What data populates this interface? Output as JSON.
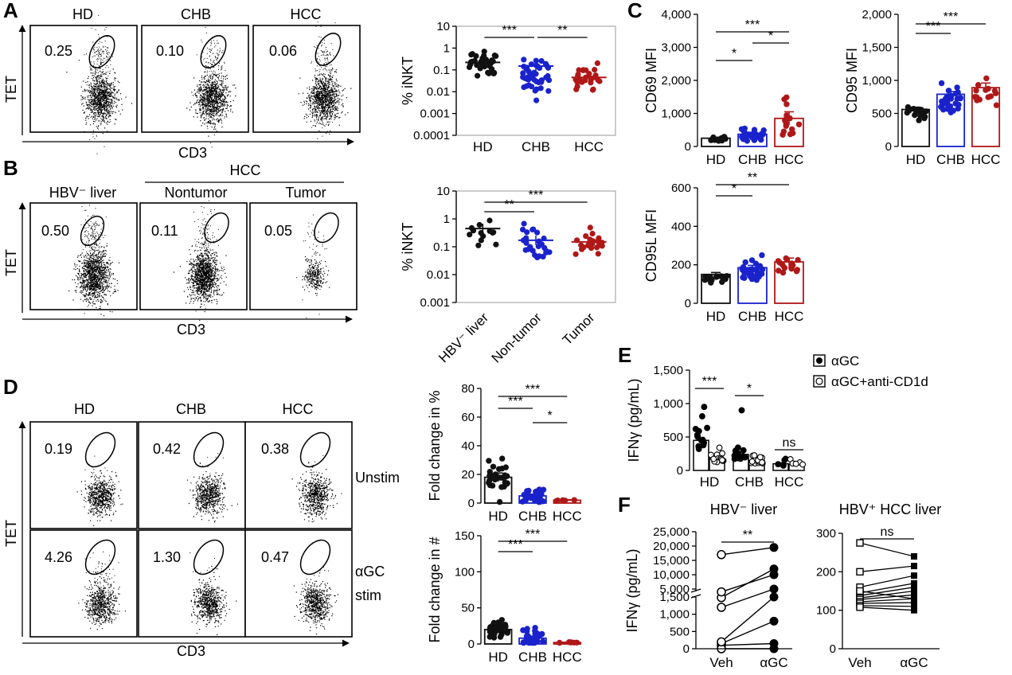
{
  "colors": {
    "HD": "#111111",
    "CHB": "#1a22cc",
    "HCC": "#b01818"
  },
  "panel_labels": [
    "A",
    "B",
    "C",
    "D",
    "E",
    "F"
  ],
  "flow_axes": {
    "x": "CD3",
    "y": "TET"
  },
  "A": {
    "plots": [
      {
        "title": "HD",
        "pct": "0.25"
      },
      {
        "title": "CHB",
        "pct": "0.10"
      },
      {
        "title": "HCC",
        "pct": "0.06"
      }
    ]
  },
  "B": {
    "group_label": "HCC",
    "plots": [
      {
        "title": "HBV⁻ liver",
        "pct": "0.50"
      },
      {
        "title": "Nontumor",
        "pct": "0.11"
      },
      {
        "title": "Tumor",
        "pct": "0.05"
      }
    ]
  },
  "D": {
    "plots": [
      {
        "title": "HD",
        "pct": [
          "0.19",
          "4.26"
        ]
      },
      {
        "title": "CHB",
        "pct": [
          "0.42",
          "1.30"
        ]
      },
      {
        "title": "HCC",
        "pct": [
          "0.38",
          "0.47"
        ]
      }
    ],
    "rows": [
      "Unstim",
      "αGC stim"
    ]
  },
  "E_legend": [
    "αGC",
    "αGC+anti-CD1d"
  ],
  "F_titles": [
    "HBV⁻ liver",
    "HBV⁺ HCC liver"
  ],
  "chart_data": [
    {
      "id": "A_iNKT",
      "type": "scatter",
      "ylabel": "% iNKT",
      "yscale": "log",
      "ylim": [
        0.0001,
        10
      ],
      "yticks": [
        "10",
        "1",
        "0.1",
        "0.01",
        "0.001",
        "0.0001"
      ],
      "categories": [
        "HD",
        "CHB",
        "HCC"
      ],
      "means": [
        0.22,
        0.15,
        0.045
      ],
      "n": [
        35,
        45,
        25
      ],
      "centers": [
        0.2,
        0.06,
        0.04
      ],
      "spreads": [
        0.55,
        1.0,
        0.65
      ],
      "sig": [
        {
          "from": 0,
          "to": 1,
          "label": "***"
        },
        {
          "from": 1,
          "to": 2,
          "label": "**"
        }
      ]
    },
    {
      "id": "B_iNKT",
      "type": "scatter",
      "ylabel": "% iNKT",
      "yscale": "log",
      "ylim": [
        0.001,
        10
      ],
      "yticks": [
        "10",
        "1",
        "0.1",
        "0.01",
        "0.001"
      ],
      "categories": [
        "HBV⁻ liver",
        "Non-tumor",
        "Tumor"
      ],
      "means": [
        0.45,
        0.17,
        0.15
      ],
      "n": [
        13,
        25,
        25
      ],
      "centers": [
        0.35,
        0.15,
        0.13
      ],
      "spreads": [
        0.5,
        0.75,
        0.55
      ],
      "sig": [
        {
          "from": 0,
          "to": 1,
          "label": "**"
        },
        {
          "from": 0,
          "to": 2,
          "label": "***"
        }
      ]
    },
    {
      "id": "C_CD69",
      "type": "bar",
      "ylabel": "CD69 MFI",
      "ylim": [
        0,
        4000
      ],
      "yticks": [
        "0",
        "1,000",
        "2,000",
        "3,000",
        "4,000"
      ],
      "categories": [
        "HD",
        "CHB",
        "HCC"
      ],
      "values": [
        250,
        370,
        850
      ],
      "sem": [
        30,
        60,
        200
      ],
      "n": [
        15,
        30,
        15
      ],
      "spreads": [
        90,
        250,
        650
      ],
      "sig": [
        {
          "from": 0,
          "to": 1,
          "label": "*"
        },
        {
          "from": 1,
          "to": 2,
          "label": "*"
        },
        {
          "from": 0,
          "to": 2,
          "label": "***"
        }
      ]
    },
    {
      "id": "C_CD95",
      "type": "bar",
      "ylabel": "CD95 MFI",
      "ylim": [
        0,
        2000
      ],
      "yticks": [
        "0",
        "500",
        "1,000",
        "1,500",
        "2,000"
      ],
      "categories": [
        "HD",
        "CHB",
        "HCC"
      ],
      "values": [
        560,
        790,
        890
      ],
      "sem": [
        35,
        40,
        70
      ],
      "n": [
        15,
        30,
        14
      ],
      "spreads": [
        120,
        220,
        190
      ],
      "sig": [
        {
          "from": 0,
          "to": 1,
          "label": "***"
        },
        {
          "from": 0,
          "to": 2,
          "label": "***"
        }
      ]
    },
    {
      "id": "C_CD95L",
      "type": "bar",
      "ylabel": "CD95L MFI",
      "ylim": [
        0,
        600
      ],
      "yticks": [
        "0",
        "200",
        "400",
        "600"
      ],
      "categories": [
        "HD",
        "CHB",
        "HCC"
      ],
      "values": [
        150,
        185,
        215
      ],
      "sem": [
        10,
        12,
        20
      ],
      "n": [
        15,
        30,
        15
      ],
      "spreads": [
        30,
        60,
        60
      ],
      "sig": [
        {
          "from": 0,
          "to": 1,
          "label": "*"
        },
        {
          "from": 0,
          "to": 2,
          "label": "**"
        }
      ]
    },
    {
      "id": "D_pct",
      "type": "bar",
      "ylabel": "Fold change in %",
      "ylim": [
        0,
        80
      ],
      "yticks": [
        "0",
        "20",
        "40",
        "60",
        "80"
      ],
      "categories": [
        "HD",
        "CHB",
        "HCC"
      ],
      "values": [
        18,
        5,
        2
      ],
      "sem": [
        3,
        1.2,
        0.4
      ],
      "n": [
        30,
        30,
        6
      ],
      "spreads": [
        14,
        8,
        1
      ],
      "sig": [
        {
          "from": 0,
          "to": 1,
          "label": "***"
        },
        {
          "from": 0,
          "to": 2,
          "label": "***"
        },
        {
          "from": 1,
          "to": 2,
          "label": "*"
        }
      ]
    },
    {
      "id": "D_num",
      "type": "bar",
      "ylabel": "Fold change in #",
      "ylim": [
        0,
        150
      ],
      "yticks": [
        "0",
        "50",
        "100",
        "150"
      ],
      "categories": [
        "HD",
        "CHB",
        "HCC"
      ],
      "values": [
        20,
        8,
        2
      ],
      "sem": [
        4,
        2,
        0.5
      ],
      "n": [
        30,
        30,
        6
      ],
      "spreads": [
        18,
        12,
        1
      ],
      "sig": [
        {
          "from": 0,
          "to": 1,
          "label": "***"
        },
        {
          "from": 0,
          "to": 2,
          "label": "***"
        }
      ]
    },
    {
      "id": "E_IFNg",
      "type": "bar",
      "ylabel": "IFNγ (pg/mL)",
      "ylim": [
        0,
        1500
      ],
      "yticks": [
        "0",
        "500",
        "1,000",
        "1,500"
      ],
      "categories": [
        "HD",
        "CHB",
        "HCC"
      ],
      "series": [
        {
          "name": "αGC",
          "values": [
            450,
            240,
            100
          ]
        },
        {
          "name": "αGC+anti-CD1d",
          "values": [
            170,
            150,
            95
          ]
        }
      ],
      "sig": [
        "***",
        "*",
        "ns"
      ]
    },
    {
      "id": "F_HBVneg",
      "type": "line",
      "ylabel": "IFNγ (pg/mL)",
      "yscale": "broken",
      "categories": [
        "Veh",
        "αGC"
      ],
      "yticks": [
        "0",
        "500",
        "1,000",
        "1,500",
        "5,000",
        "10,000",
        "15,000",
        "20,000",
        "25,000"
      ],
      "pairs": [
        [
          100,
          150
        ],
        [
          150,
          800
        ],
        [
          1200,
          5000
        ],
        [
          0,
          0
        ],
        [
          2000,
          12000
        ],
        [
          17000,
          19500
        ],
        [
          4000,
          10000
        ],
        [
          200,
          1500
        ]
      ],
      "sig": "**"
    },
    {
      "id": "F_HCC",
      "type": "line",
      "ylabel": "",
      "ylim": [
        0,
        300
      ],
      "yticks": [
        "0",
        "100",
        "200",
        "300"
      ],
      "categories": [
        "Veh",
        "αGC"
      ],
      "pairs": [
        [
          275,
          240
        ],
        [
          200,
          215
        ],
        [
          160,
          190
        ],
        [
          145,
          170
        ],
        [
          138,
          160
        ],
        [
          132,
          150
        ],
        [
          128,
          140
        ],
        [
          122,
          130
        ],
        [
          118,
          120
        ],
        [
          112,
          110
        ],
        [
          108,
          100
        ],
        [
          150,
          130
        ]
      ],
      "sig": "ns"
    }
  ]
}
